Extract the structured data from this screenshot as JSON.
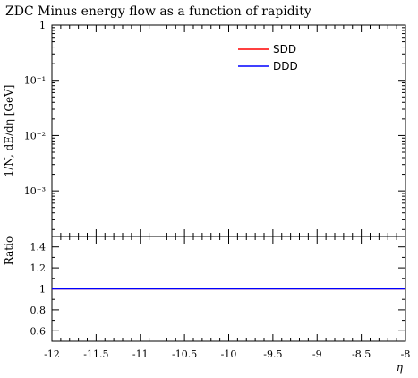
{
  "chart_data": [
    {
      "type": "line",
      "title": "ZDC Minus energy flow as a function of rapidity",
      "ylabel": "1/N, dE/dη [GeV]",
      "xlabel": "",
      "yscale": "log",
      "ylim": [
        0.00015,
        1
      ],
      "xlim": [
        -12,
        -8
      ],
      "y_ticks": [
        "1",
        "10⁻¹",
        "10⁻²",
        "10⁻³"
      ],
      "grid": false,
      "legend_position": "top-right",
      "series": [
        {
          "name": "SDD",
          "color": "#ff0000",
          "x": [],
          "y": []
        },
        {
          "name": "DDD",
          "color": "#0000ff",
          "x": [],
          "y": []
        }
      ]
    },
    {
      "type": "line",
      "title": "",
      "ylabel": "Ratio",
      "xlabel": "η",
      "ylim": [
        0.5,
        1.5
      ],
      "xlim": [
        -12,
        -8
      ],
      "y_ticks": [
        "1.4",
        "1.2",
        "1",
        "0.8",
        "0.6"
      ],
      "x_ticks": [
        "-12",
        "-11.5",
        "-11",
        "-10.5",
        "-10",
        "-9.5",
        "-9",
        "-8.5",
        "-8"
      ],
      "grid": false,
      "series": [
        {
          "name": "SDD",
          "color": "#ff0000",
          "x": [
            -12,
            -8
          ],
          "y": [
            1,
            1
          ]
        },
        {
          "name": "DDD",
          "color": "#0000ff",
          "x": [
            -12,
            -8
          ],
          "y": [
            1,
            1
          ]
        }
      ]
    }
  ]
}
